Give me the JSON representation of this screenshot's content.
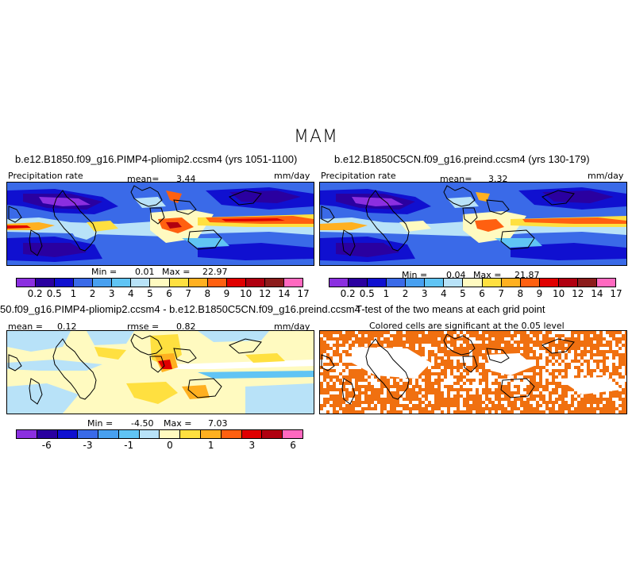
{
  "figure": {
    "title": "MAM"
  },
  "panels": {
    "case1": {
      "title": "b.e12.B1850.f09_g16.PIMP4-pliomip2.ccsm4 (yrs 1051-1100)",
      "variable": "Precipitation rate",
      "mean_label": "mean=",
      "mean_value": "3.44",
      "units": "mm/day",
      "min_label": "Min =",
      "min_value": "0.01",
      "max_label": "Max =",
      "max_value": "22.97"
    },
    "case2": {
      "title": "b.e12.B1850C5CN.f09_g16.preind.ccsm4 (yrs 130-179)",
      "variable": "Precipitation rate",
      "mean_label": "mean=",
      "mean_value": "3.32",
      "units": "mm/day",
      "min_label": "Min =",
      "min_value": "0.04",
      "max_label": "Max =",
      "max_value": "21.87"
    },
    "diff": {
      "title": "50.f09_g16.PIMP4-pliomip2.ccsm4 - b.e12.B1850C5CN.f09_g16.preind.ccsm4",
      "mean_label": "mean =",
      "mean_value": "0.12",
      "rmse_label": "rmse =",
      "rmse_value": "0.82",
      "units": "mm/day",
      "min_label": "Min =",
      "min_value": "-4.50",
      "max_label": "Max =",
      "max_value": "7.03"
    },
    "ttest": {
      "title": "T-test of the two means at each grid point",
      "note": "Colored cells are significant at the 0.05 level",
      "color": "#f07010"
    }
  },
  "colorbars": {
    "precip": {
      "colors": [
        "#8b2fe0",
        "#2a00a0",
        "#1010d0",
        "#3a6ae8",
        "#48a0f0",
        "#60c4f4",
        "#b8e2f8",
        "#fffac0",
        "#ffe040",
        "#ffb020",
        "#ff6010",
        "#e00000",
        "#b00010",
        "#8c1c1c",
        "#ff69c0"
      ],
      "ticks": [
        "0.2",
        "0.5",
        "1",
        "2",
        "3",
        "4",
        "5",
        "6",
        "7",
        "8",
        "9",
        "10",
        "12",
        "14",
        "17"
      ]
    },
    "diff": {
      "colors": [
        "#8b2fe0",
        "#2a00a0",
        "#1010d0",
        "#3a6ae8",
        "#48a0f0",
        "#60c4f4",
        "#b8e2f8",
        "#fffac0",
        "#ffe040",
        "#ffb020",
        "#ff6010",
        "#e00000",
        "#b00010",
        "#ff69c0"
      ],
      "ticks": [
        "-6",
        "-3",
        "-1",
        "0",
        "1",
        "3",
        "6"
      ]
    }
  }
}
